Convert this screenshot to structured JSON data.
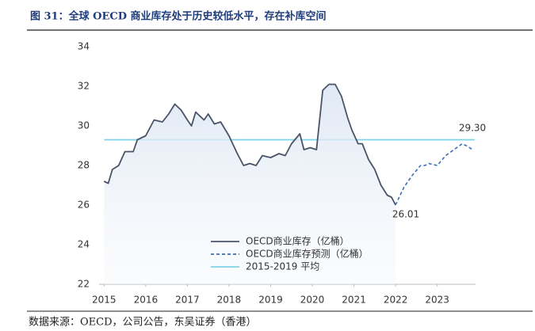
{
  "chart_data": {
    "type": "line",
    "title": "图 31：全球 OECD 商业库存处于历史较低水平，存在补库空间",
    "source": "数据来源：OECD，公司公告，东吴证券（香港）",
    "xlim": [
      2014.88,
      2023.92
    ],
    "xticks": [
      2015,
      2016,
      2017,
      2018,
      2019,
      2020,
      2021,
      2022,
      2023
    ],
    "ylim": [
      22,
      34
    ],
    "yticks": [
      22,
      24,
      26,
      28,
      30,
      32,
      34
    ],
    "legend": "lower center",
    "annotations": [
      "29.30",
      "26.01"
    ],
    "series": [
      {
        "name": "OECD商业库存（亿桶）",
        "color": "#4a5468",
        "style": "solid",
        "fill": true,
        "x": [
          2015.0,
          2015.1,
          2015.2,
          2015.35,
          2015.5,
          2015.7,
          2015.8,
          2016.0,
          2016.2,
          2016.4,
          2016.55,
          2016.7,
          2016.85,
          2017.0,
          2017.1,
          2017.2,
          2017.4,
          2017.5,
          2017.65,
          2017.8,
          2018.0,
          2018.2,
          2018.35,
          2018.5,
          2018.65,
          2018.8,
          2019.0,
          2019.2,
          2019.35,
          2019.5,
          2019.7,
          2019.8,
          2019.95,
          2020.1,
          2020.25,
          2020.4,
          2020.55,
          2020.7,
          2020.85,
          2020.95,
          2021.1,
          2021.2,
          2021.35,
          2021.5,
          2021.65,
          2021.8,
          2021.9,
          2022.0
        ],
        "values": [
          27.2,
          27.1,
          27.8,
          28.0,
          28.7,
          28.7,
          29.3,
          29.5,
          30.3,
          30.2,
          30.6,
          31.1,
          30.8,
          30.3,
          30.0,
          30.7,
          30.3,
          30.6,
          30.1,
          30.2,
          29.5,
          28.6,
          28.0,
          28.1,
          28.0,
          28.5,
          28.4,
          28.6,
          28.5,
          29.1,
          29.6,
          28.8,
          28.9,
          28.8,
          31.8,
          32.1,
          32.1,
          31.5,
          30.4,
          29.8,
          29.1,
          29.1,
          28.3,
          27.8,
          27.0,
          26.5,
          26.4,
          26.01
        ]
      },
      {
        "name": "OECD商业库存预测（亿桶）",
        "color": "#3a6fb5",
        "style": "dashed",
        "fill": false,
        "x": [
          2022.0,
          2022.2,
          2022.4,
          2022.6,
          2022.7,
          2022.8,
          2023.0,
          2023.2,
          2023.4,
          2023.6,
          2023.7,
          2023.85
        ],
        "values": [
          26.01,
          26.9,
          27.5,
          28.0,
          28.0,
          28.1,
          28.0,
          28.5,
          28.8,
          29.1,
          29.0,
          28.8
        ]
      },
      {
        "name": "2015-2019 平均",
        "color": "#7fd3e6",
        "style": "solid",
        "fill": false,
        "x": [
          2015.0,
          2023.9
        ],
        "values": [
          29.3,
          29.3
        ]
      }
    ]
  }
}
